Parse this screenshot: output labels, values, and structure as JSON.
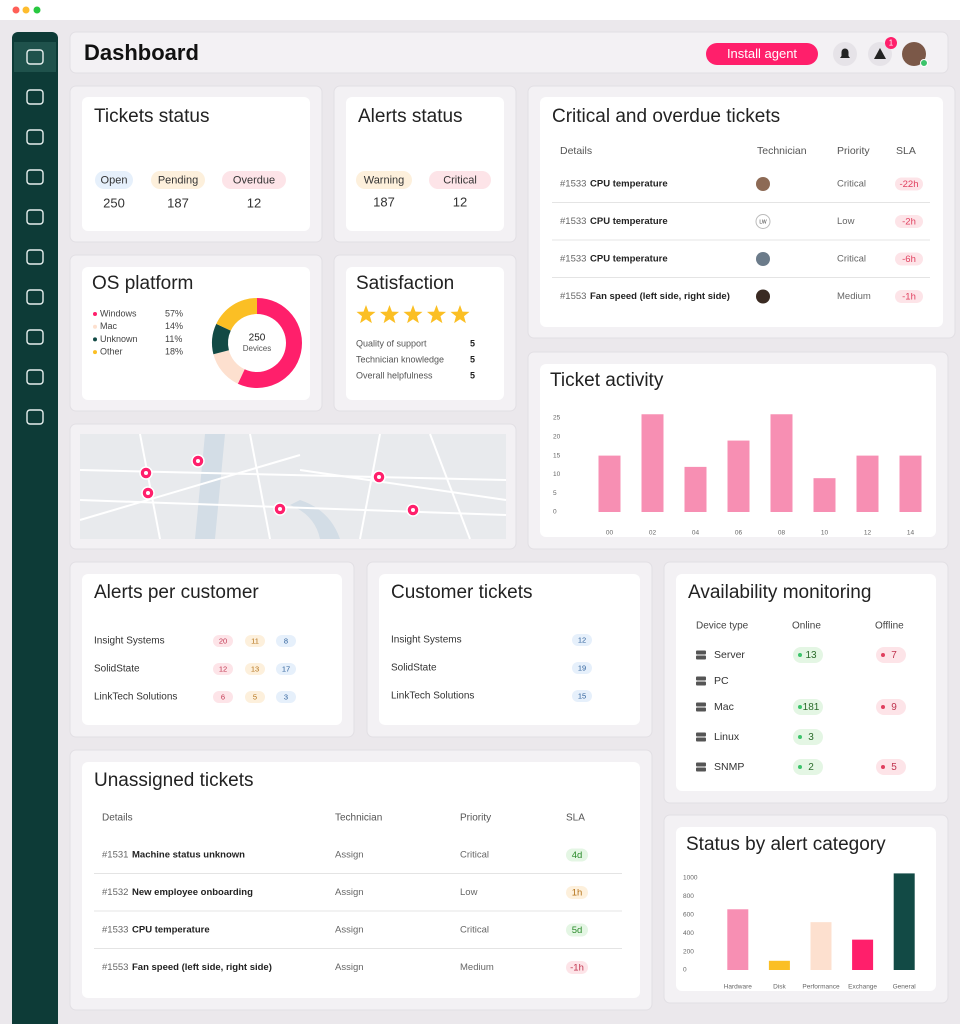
{
  "header": {
    "title": "Dashboard",
    "button": "Install agent",
    "notifications": 1
  },
  "tickets_status": {
    "title": "Tickets status",
    "items": [
      {
        "label": "Open",
        "value": 250
      },
      {
        "label": "Pending",
        "value": 187
      },
      {
        "label": "Overdue",
        "value": 12
      }
    ]
  },
  "alerts_status": {
    "title": "Alerts status",
    "items": [
      {
        "label": "Warning",
        "value": 187
      },
      {
        "label": "Critical",
        "value": 12
      }
    ]
  },
  "critical_tickets": {
    "title": "Critical and overdue tickets",
    "columns": [
      "Details",
      "Technician",
      "Priority",
      "SLA"
    ],
    "rows": [
      {
        "id": "#1533",
        "name": "CPU temperature",
        "priority": "Critical",
        "sla": "-22h"
      },
      {
        "id": "#1533",
        "name": "CPU temperature",
        "initials": "LW",
        "priority": "Low",
        "sla": "-2h"
      },
      {
        "id": "#1533",
        "name": "CPU temperature",
        "priority": "Critical",
        "sla": "-6h"
      },
      {
        "id": "#1553",
        "name": "Fan speed (left side, right side)",
        "priority": "Medium",
        "sla": "-1h"
      }
    ]
  },
  "os_platform": {
    "title": "OS platform",
    "center_value": 250,
    "center_label": "Devices",
    "segments": [
      {
        "name": "Windows",
        "value": 57,
        "value_label": "57%",
        "color": "#ff1f6b"
      },
      {
        "name": "Mac",
        "value": 14,
        "value_label": "14%",
        "color": "#fde0cf"
      },
      {
        "name": "Unknown",
        "value": 11,
        "value_label": "11%",
        "color": "#124a45"
      },
      {
        "name": "Other",
        "value": 18,
        "value_label": "18%",
        "color": "#fbbf24"
      }
    ]
  },
  "satisfaction": {
    "title": "Satisfaction",
    "rating": 5,
    "items": [
      {
        "label": "Quality of support",
        "value": 5
      },
      {
        "label": "Technician knowledge",
        "value": 5
      },
      {
        "label": "Overall helpfulness",
        "value": 5
      }
    ]
  },
  "ticket_activity": {
    "type": "bar",
    "title": "Ticket activity",
    "categories": [
      "00",
      "02",
      "04",
      "06",
      "08",
      "10",
      "12",
      "14"
    ],
    "values": [
      15,
      26,
      12,
      19,
      26,
      9,
      15,
      15
    ],
    "color": "#f78fb3",
    "ylim": [
      0,
      27
    ],
    "yticks": [
      0,
      5,
      10,
      15,
      20,
      25
    ]
  },
  "alerts_per_customer": {
    "title": "Alerts per customer",
    "rows": [
      {
        "name": "Insight Systems",
        "values": [
          20,
          11,
          8
        ]
      },
      {
        "name": "SolidState",
        "values": [
          12,
          13,
          17
        ]
      },
      {
        "name": "LinkTech Solutions",
        "values": [
          6,
          5,
          3
        ]
      }
    ]
  },
  "customer_tickets": {
    "title": "Customer tickets",
    "rows": [
      {
        "name": "Insight Systems",
        "value": 12
      },
      {
        "name": "SolidState",
        "value": 19
      },
      {
        "name": "LinkTech Solutions",
        "value": 15
      }
    ]
  },
  "availability": {
    "title": "Availability monitoring",
    "columns": [
      "Device type",
      "Online",
      "Offline"
    ],
    "rows": [
      {
        "name": "Server",
        "online": 13,
        "offline": 7
      },
      {
        "name": "PC",
        "online": null,
        "offline": null
      },
      {
        "name": "Mac",
        "online": 181,
        "offline": 9
      },
      {
        "name": "Linux",
        "online": 3,
        "offline": null
      },
      {
        "name": "SNMP",
        "online": 2,
        "offline": 5
      }
    ]
  },
  "unassigned_tickets": {
    "title": "Unassigned tickets",
    "columns": [
      "Details",
      "Technician",
      "Priority",
      "SLA"
    ],
    "rows": [
      {
        "id": "#1531",
        "name": "Machine status unknown",
        "technician": "Assign",
        "priority": "Critical",
        "sla": "4d",
        "sla_color": "green"
      },
      {
        "id": "#1532",
        "name": "New employee onboarding",
        "technician": "Assign",
        "priority": "Low",
        "sla": "1h",
        "sla_color": "yellow"
      },
      {
        "id": "#1533",
        "name": "CPU temperature",
        "technician": "Assign",
        "priority": "Critical",
        "sla": "5d",
        "sla_color": "green"
      },
      {
        "id": "#1553",
        "name": "Fan speed (left side, right side)",
        "technician": "Assign",
        "priority": "Medium",
        "sla": "-1h",
        "sla_color": "red"
      }
    ]
  },
  "alert_category": {
    "type": "bar",
    "title": "Status by alert category",
    "categories": [
      "Hardware",
      "Disk",
      "Performance",
      "Exchange",
      "General"
    ],
    "values": [
      660,
      100,
      520,
      330,
      1050
    ],
    "colors": [
      "#f78fb3",
      "#fbbf24",
      "#fde0cf",
      "#ff1f6b",
      "#124a45"
    ],
    "ylim": [
      0,
      1100
    ],
    "yticks": [
      0,
      200,
      400,
      600,
      800,
      1000
    ]
  }
}
